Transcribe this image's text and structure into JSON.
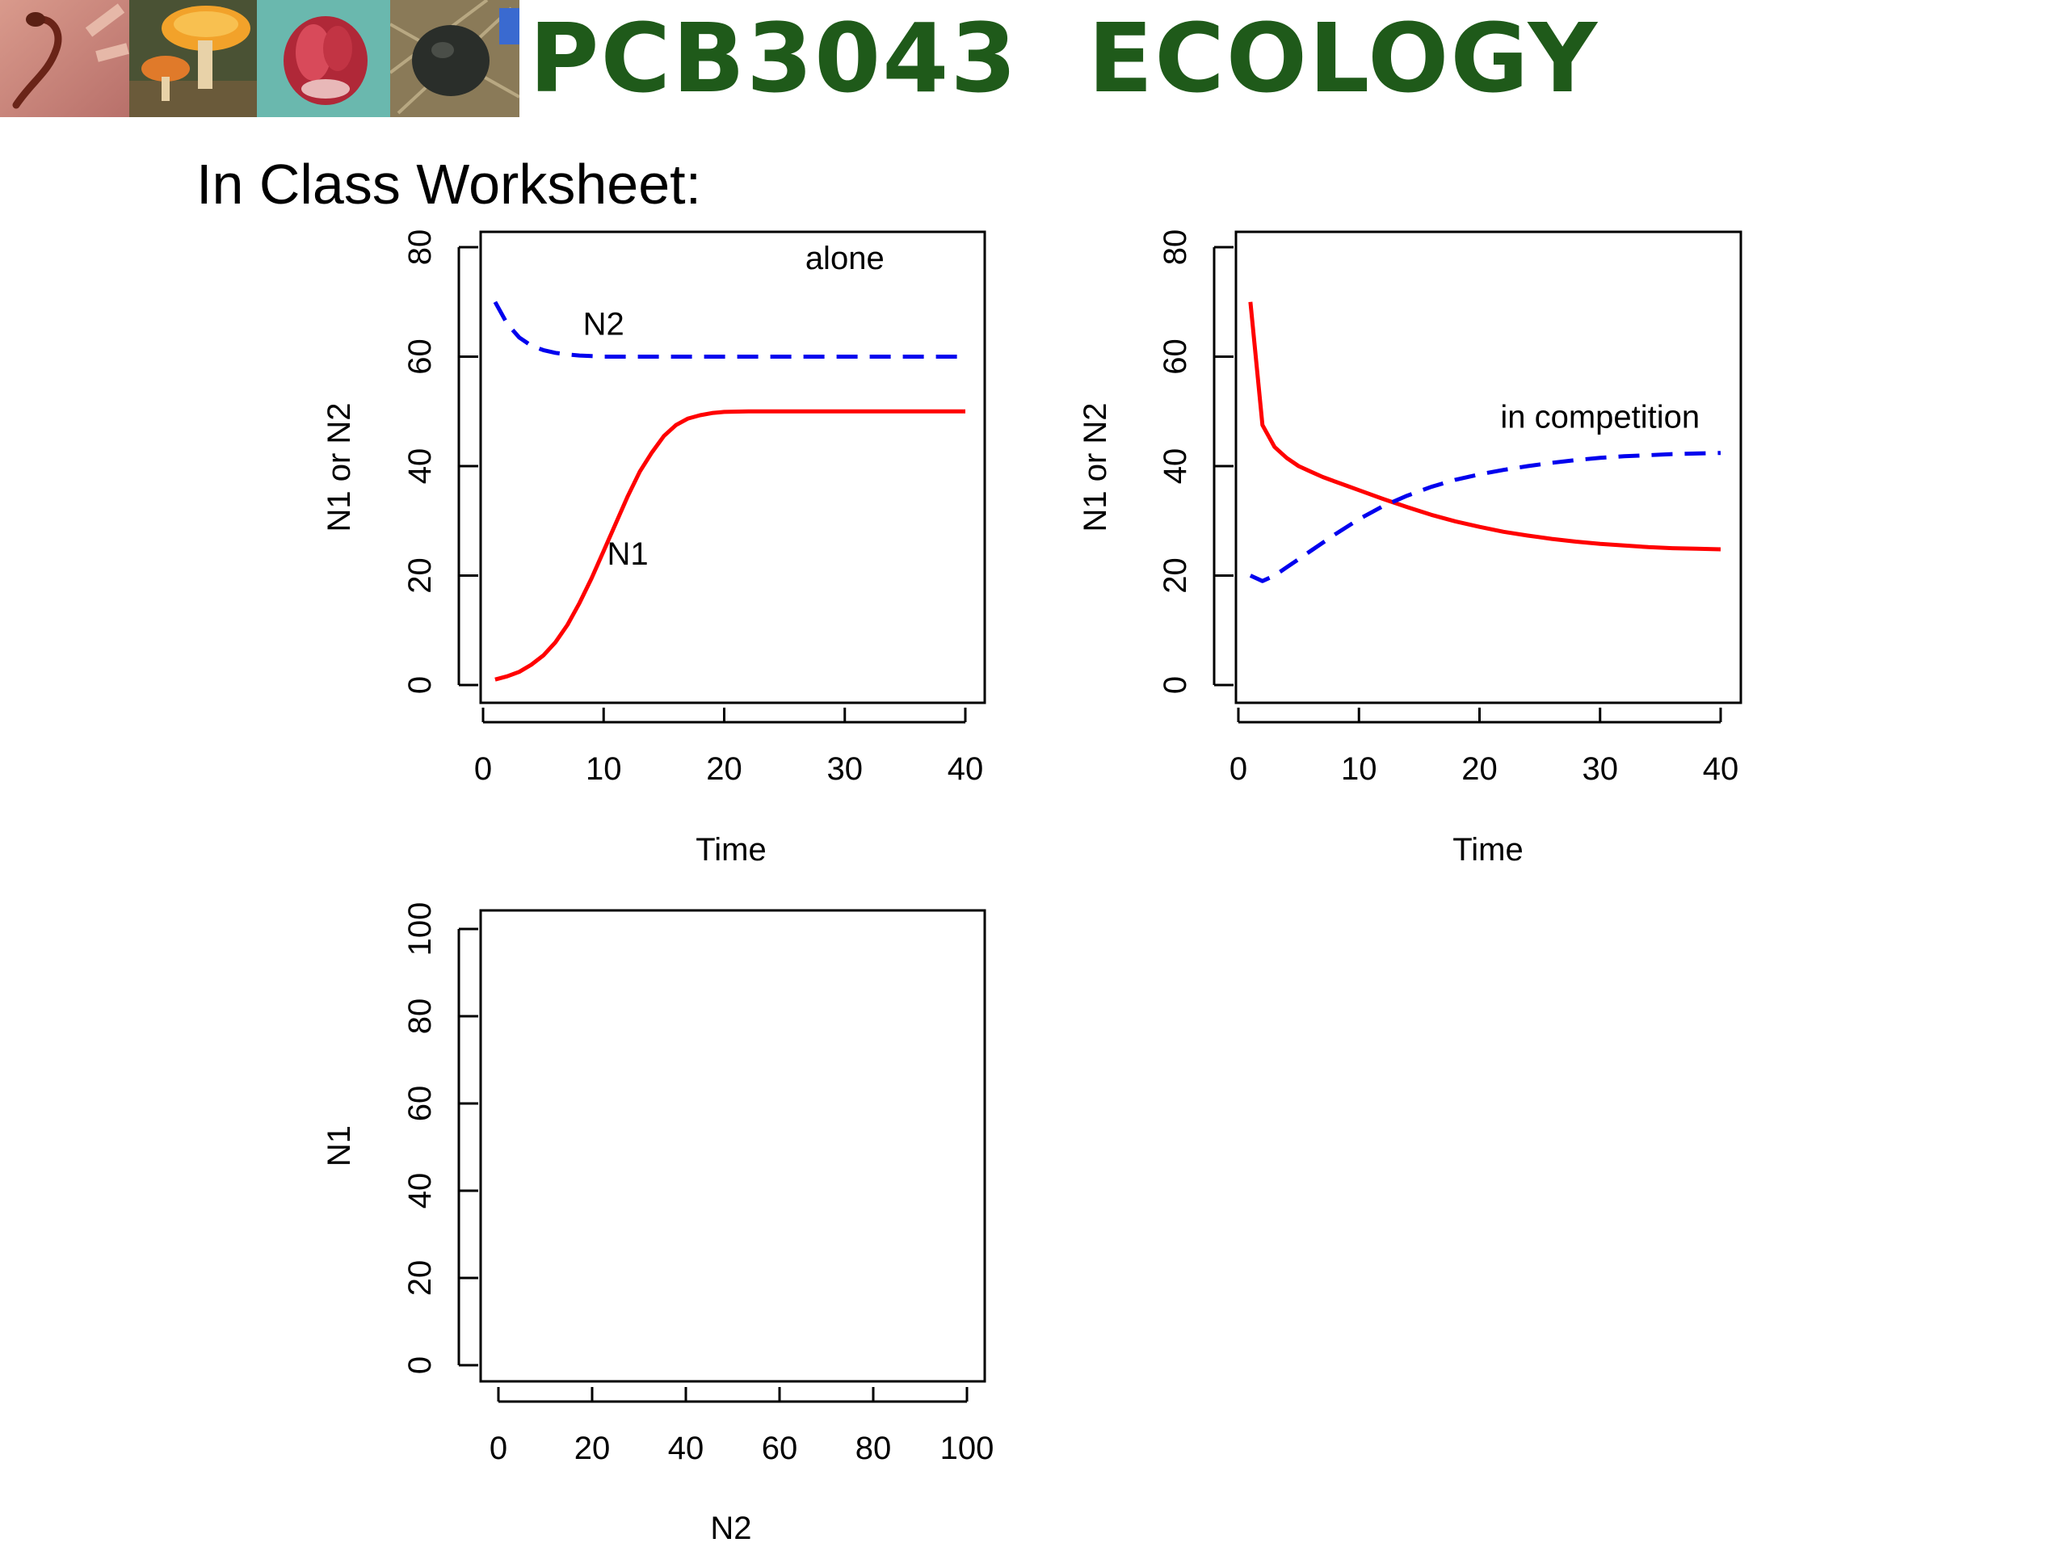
{
  "header": {
    "course_title": "PCB3043  ECOLOGY",
    "photos": [
      {
        "name": "salamander-photo",
        "colors": [
          "#c98a7e",
          "#8a3a2c",
          "#dba393"
        ]
      },
      {
        "name": "mushroom-photo",
        "colors": [
          "#3c4a2a",
          "#f0a030",
          "#e8d0a0"
        ]
      },
      {
        "name": "flower-photo",
        "colors": [
          "#5fb3a8",
          "#b8283a",
          "#e8c0c0"
        ]
      },
      {
        "name": "beetle-photo",
        "colors": [
          "#8a7a5a",
          "#2a2e2a",
          "#3a6ad0"
        ]
      }
    ],
    "title_color": "#1f5a1a"
  },
  "worksheet": {
    "title": "In Class Worksheet:"
  },
  "colors": {
    "n1": "#ff0000",
    "n2": "#0000ee",
    "frame": "#000000"
  },
  "chart_data": [
    {
      "type": "line",
      "xlabel": "Time",
      "ylabel": "N1 or N2",
      "xlim": [
        0,
        40
      ],
      "ylim": [
        0,
        80
      ],
      "xticks": [
        0,
        10,
        20,
        30,
        40
      ],
      "yticks": [
        0,
        20,
        40,
        60,
        80
      ],
      "annotations": [
        {
          "text": "alone",
          "x": 30,
          "y": 76
        },
        {
          "text": "N2",
          "x": 10,
          "y": 64
        },
        {
          "text": "N1",
          "x": 12,
          "y": 22
        }
      ],
      "series": [
        {
          "name": "N1",
          "style": "solid",
          "color": "#ff0000",
          "x": [
            1,
            2,
            3,
            4,
            5,
            6,
            7,
            8,
            9,
            10,
            11,
            12,
            13,
            14,
            15,
            16,
            17,
            18,
            19,
            20,
            22,
            24,
            26,
            28,
            30,
            32,
            34,
            36,
            38,
            40
          ],
          "y": [
            1,
            1.6,
            2.4,
            3.7,
            5.4,
            7.8,
            11,
            15,
            19.5,
            24.5,
            29.5,
            34.5,
            39,
            42.5,
            45.5,
            47.5,
            48.7,
            49.3,
            49.7,
            49.9,
            50,
            50,
            50,
            50,
            50,
            50,
            50,
            50,
            50,
            50
          ]
        },
        {
          "name": "N2",
          "style": "dashed",
          "color": "#0000ee",
          "x": [
            1,
            2,
            3,
            4,
            5,
            6,
            7,
            8,
            9,
            10,
            12,
            14,
            16,
            18,
            20,
            25,
            30,
            35,
            40
          ],
          "y": [
            70,
            66,
            63.5,
            62,
            61.2,
            60.7,
            60.4,
            60.2,
            60.1,
            60,
            60,
            60,
            60,
            60,
            60,
            60,
            60,
            60,
            60
          ]
        }
      ]
    },
    {
      "type": "line",
      "xlabel": "Time",
      "ylabel": "N1 or N2",
      "xlim": [
        0,
        40
      ],
      "ylim": [
        0,
        80
      ],
      "xticks": [
        0,
        10,
        20,
        30,
        40
      ],
      "yticks": [
        0,
        20,
        40,
        60,
        80
      ],
      "annotations": [
        {
          "text": "in competition",
          "x": 30,
          "y": 47
        }
      ],
      "series": [
        {
          "name": "N1",
          "style": "solid",
          "color": "#ff0000",
          "x": [
            1,
            2,
            3,
            4,
            5,
            6,
            7,
            8,
            9,
            10,
            12,
            14,
            16,
            18,
            20,
            22,
            24,
            26,
            28,
            30,
            32,
            34,
            36,
            38,
            40
          ],
          "y": [
            70,
            47.5,
            43.5,
            41.5,
            40,
            39,
            38,
            37.2,
            36.4,
            35.6,
            34,
            32.5,
            31.1,
            29.9,
            28.9,
            28,
            27.3,
            26.7,
            26.2,
            25.8,
            25.5,
            25.2,
            25,
            24.9,
            24.8
          ]
        },
        {
          "name": "N2",
          "style": "dashed",
          "color": "#0000ee",
          "x": [
            1,
            2,
            3,
            4,
            5,
            6,
            8,
            10,
            12,
            14,
            16,
            18,
            20,
            22,
            24,
            26,
            28,
            30,
            32,
            34,
            36,
            38,
            40
          ],
          "y": [
            20,
            19,
            20,
            21.5,
            23,
            24.5,
            27.5,
            30.3,
            32.7,
            34.6,
            36.2,
            37.5,
            38.5,
            39.3,
            40,
            40.6,
            41.1,
            41.5,
            41.8,
            42,
            42.2,
            42.3,
            42.4
          ]
        }
      ]
    },
    {
      "type": "scatter",
      "xlabel": "N2",
      "ylabel": "N1",
      "xlim": [
        0,
        100
      ],
      "ylim": [
        0,
        100
      ],
      "xticks": [
        0,
        20,
        40,
        60,
        80,
        100
      ],
      "yticks": [
        0,
        20,
        40,
        60,
        80,
        100
      ],
      "annotations": [],
      "series": []
    }
  ]
}
